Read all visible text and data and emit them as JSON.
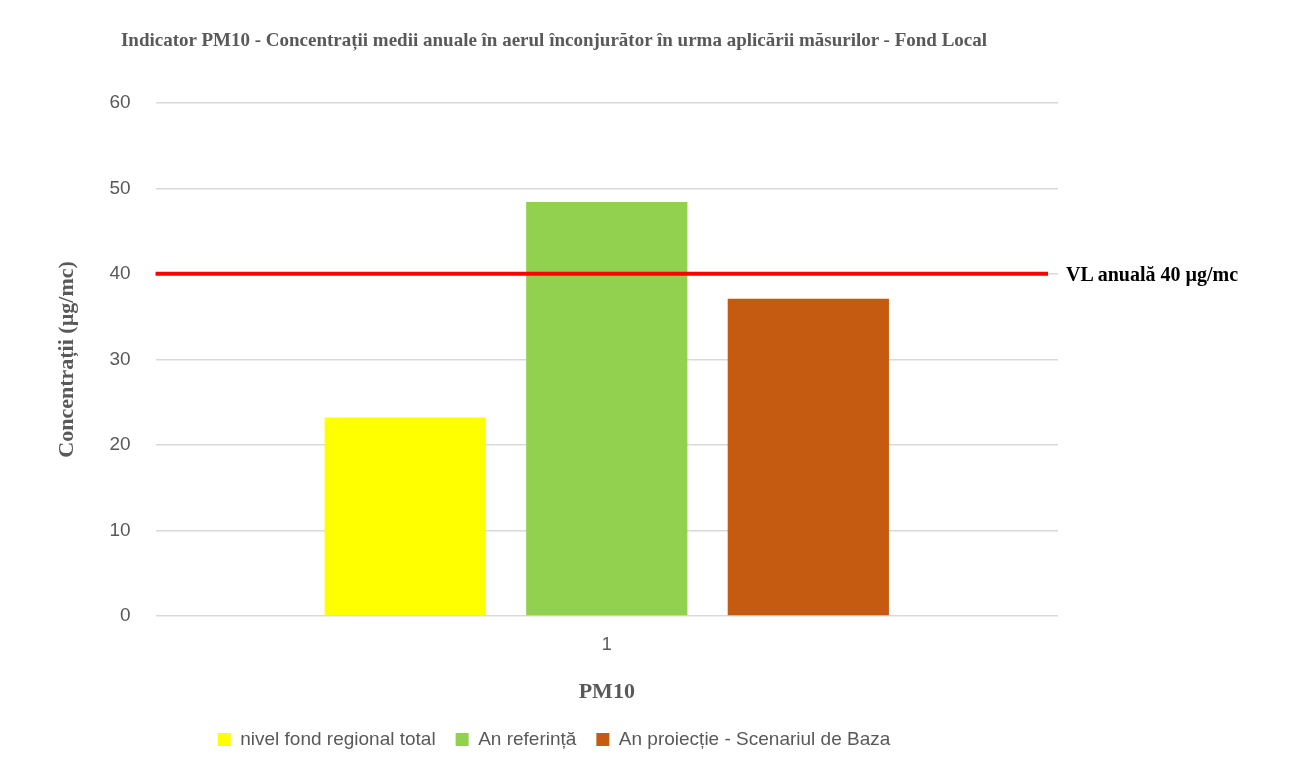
{
  "chart_data": {
    "type": "bar",
    "title": "Indicator PM10 - Concentrații medii anuale în aerul înconjurător în urma aplicării măsurilor - Fond Local",
    "xlabel": "PM10",
    "ylabel": "Concentrații (µg/mc)",
    "categories": [
      "1"
    ],
    "series": [
      {
        "name": "nivel fond regional total",
        "color": "#ffff00",
        "values": [
          23.2
        ]
      },
      {
        "name": "An referință",
        "color": "#92d050",
        "values": [
          48.4
        ]
      },
      {
        "name": "An proiecție - Scenariul de Baza",
        "color": "#c55a11",
        "values": [
          37.1
        ]
      }
    ],
    "ylim": [
      0,
      60
    ],
    "yticks": [
      0,
      10,
      20,
      30,
      40,
      50,
      60
    ],
    "grid": "y",
    "legend": "bottom",
    "ref_lines": [
      {
        "axis": "y",
        "value": 40,
        "label": "VL anuală 40 µg/mc",
        "color": "#ff0000"
      }
    ]
  }
}
